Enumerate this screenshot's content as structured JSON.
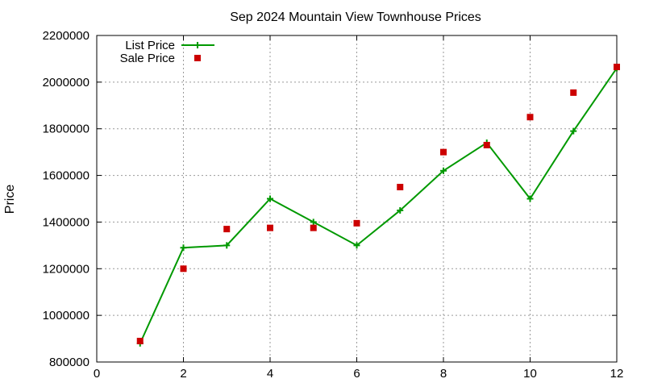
{
  "chart_data": {
    "type": "line",
    "title": "Sep 2024 Mountain View Townhouse Prices",
    "xlabel": "",
    "ylabel": "Price",
    "xlim": [
      0,
      12
    ],
    "ylim": [
      800000,
      2200000
    ],
    "xticks": [
      0,
      2,
      4,
      6,
      8,
      10,
      12
    ],
    "yticks": [
      800000,
      1000000,
      1200000,
      1400000,
      1600000,
      1800000,
      2000000,
      2200000
    ],
    "grid": true,
    "legend_position": "top-left",
    "series": [
      {
        "name": "List Price",
        "style": "linespoints",
        "marker": "plus",
        "color": "#009900",
        "x": [
          1,
          2,
          3,
          4,
          5,
          6,
          7,
          8,
          9,
          10,
          11,
          12
        ],
        "values": [
          880000,
          1290000,
          1300000,
          1500000,
          1400000,
          1300000,
          1450000,
          1620000,
          1740000,
          1500000,
          1790000,
          2060000
        ]
      },
      {
        "name": "Sale Price",
        "style": "points",
        "marker": "square",
        "color": "#cc0000",
        "x": [
          1,
          2,
          3,
          4,
          5,
          6,
          7,
          8,
          9,
          10,
          11,
          12
        ],
        "values": [
          890000,
          1200000,
          1370000,
          1375000,
          1375000,
          1395000,
          1550000,
          1700000,
          1730000,
          1850000,
          1955000,
          2065000
        ]
      }
    ]
  }
}
